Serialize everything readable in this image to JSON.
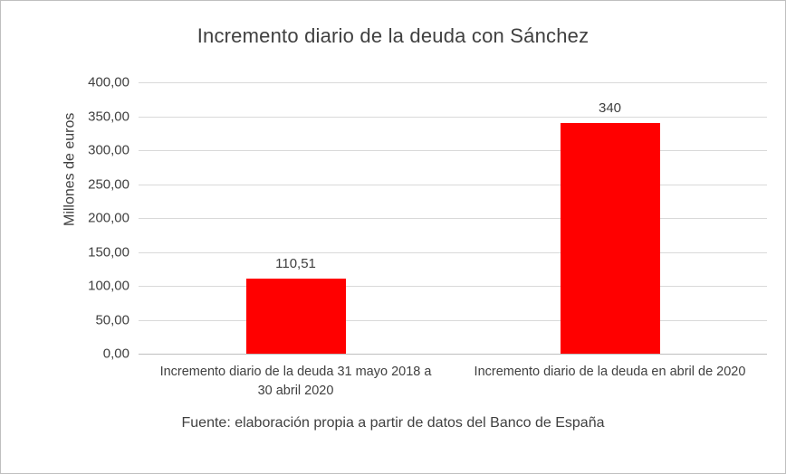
{
  "chart_data": {
    "type": "bar",
    "title": "Incremento diario de la deuda con Sánchez",
    "ylabel": "Millones de euros",
    "xlabel": "",
    "categories": [
      "Incremento diario de la deuda  31 mayo 2018 a 30 abril 2020",
      "Incremento diario de la deuda en abril de 2020"
    ],
    "values": [
      110.51,
      340
    ],
    "value_labels": [
      "110,51",
      "340"
    ],
    "ylim": [
      0,
      400
    ],
    "ytick_labels": [
      "400,00",
      "350,00",
      "300,00",
      "250,00",
      "200,00",
      "150,00",
      "100,00",
      "50,00",
      "0,00"
    ],
    "grid": true,
    "legend": "none",
    "bar_color": "#ff0000",
    "source": "Fuente: elaboración propia a partir de datos del Banco de España"
  }
}
